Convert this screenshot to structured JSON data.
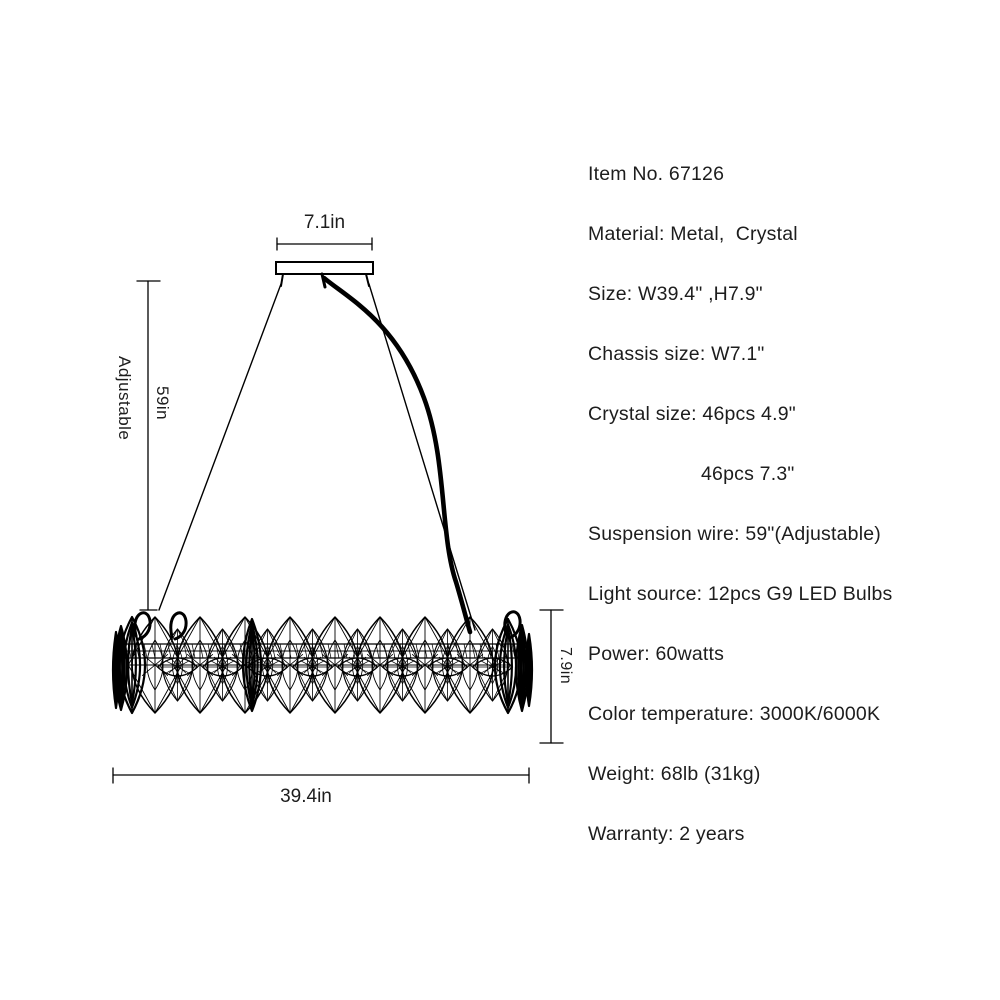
{
  "page": {
    "background": "#ffffff",
    "ink": "#000000",
    "text_color": "#1d1d1d"
  },
  "diagram": {
    "labels": {
      "chassis_width": "7.1in",
      "suspension_adjustable": "Adjustable",
      "suspension_length": "59in",
      "body_height": "7.9in",
      "body_width": "39.4in"
    }
  },
  "specs": {
    "lines": [
      "Item No. 67126",
      "Material: Metal,  Crystal",
      "Size: W39.4\" ,H7.9\"",
      "Chassis size: W7.1\"",
      "Crystal size: 46pcs 4.9\"",
      "46pcs 7.3\"",
      "Suspension wire: 59\"(Adjustable)",
      "Light source: 12pcs G9 LED Bulbs",
      "Power: 60watts",
      "Color temperature: 3000K/6000K",
      "Weight: 68lb (31kg)",
      "Warranty: 2 years"
    ]
  }
}
